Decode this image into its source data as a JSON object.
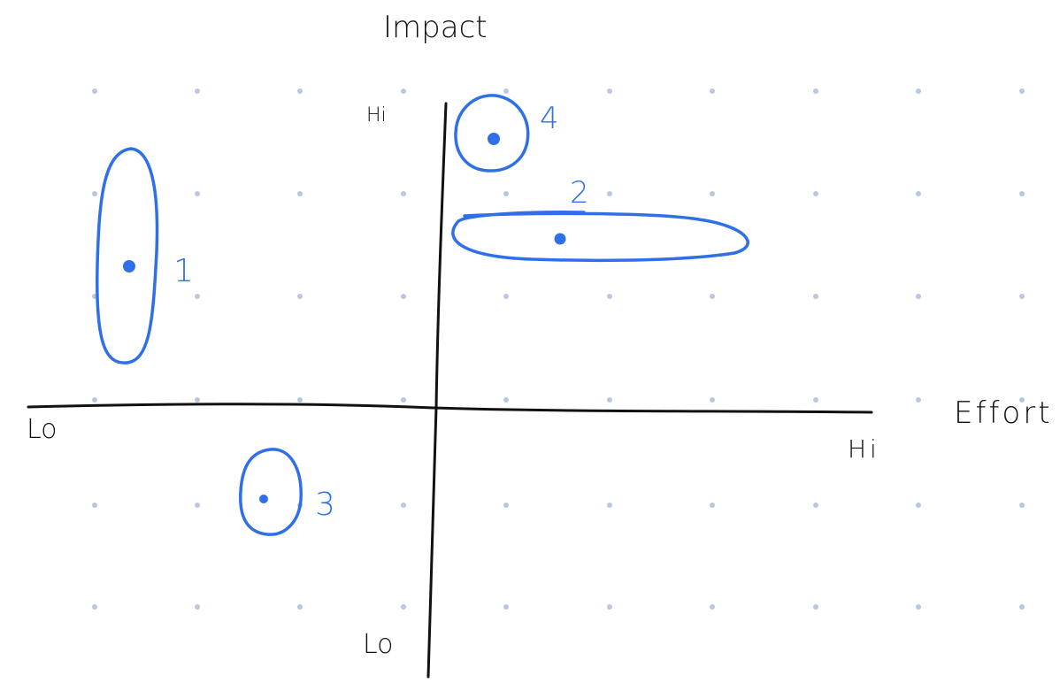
{
  "diagram": {
    "axes": {
      "vertical_title": "Impact",
      "horizontal_title": "Effort",
      "vertical_high_label": "Hi",
      "vertical_low_label": "Lo",
      "horizontal_low_label": "Lo",
      "horizontal_high_label": "Hi"
    },
    "items": [
      {
        "label": "1"
      },
      {
        "label": "2"
      },
      {
        "label": "3"
      },
      {
        "label": "4"
      }
    ],
    "colors": {
      "axis": "#111111",
      "item": "#2f6fe8",
      "grid_dot": "#b9c7e2"
    }
  }
}
